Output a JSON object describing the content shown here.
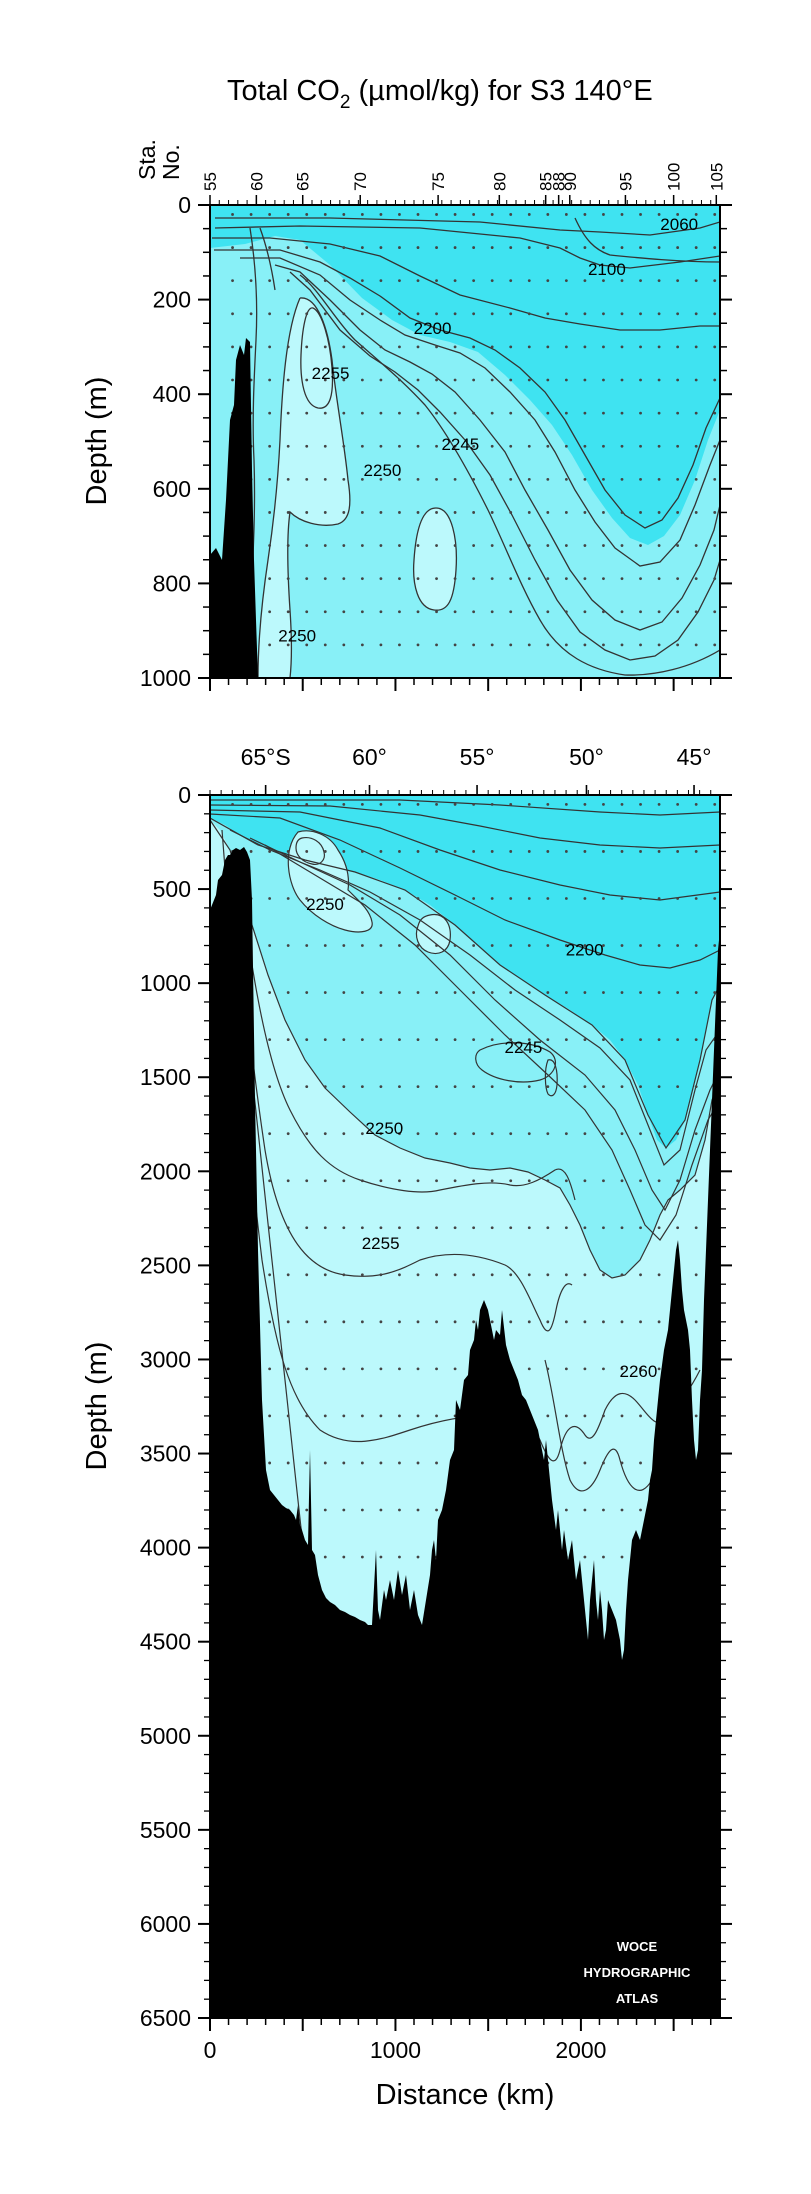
{
  "chart_data": {
    "type": "contour-section",
    "title_main": "Total CO",
    "title_sub": "2",
    "title_rest": " (µmol/kg) for S3 140°E",
    "station_label": [
      "Sta.",
      "No."
    ],
    "xlabel": "Distance (km)",
    "ylabel": "Depth (m)",
    "xlim": [
      0,
      2750
    ],
    "x_ticks": [
      "0",
      "1000",
      "2000"
    ],
    "x_tick_values": [
      0,
      1000,
      2000
    ],
    "stations": [
      {
        "no": "55",
        "km": 0
      },
      {
        "no": "60",
        "km": 250
      },
      {
        "no": "65",
        "km": 500
      },
      {
        "no": "70",
        "km": 810
      },
      {
        "no": "75",
        "km": 1230
      },
      {
        "no": "80",
        "km": 1560
      },
      {
        "no": "85",
        "km": 1810
      },
      {
        "no": "88",
        "km": 1880
      },
      {
        "no": "90",
        "km": 1940
      },
      {
        "no": "95",
        "km": 2240
      },
      {
        "no": "100",
        "km": 2500
      },
      {
        "no": "105",
        "km": 2730
      }
    ],
    "latitude_ticks": [
      {
        "label": "65°S",
        "km": 300
      },
      {
        "label": "60°",
        "km": 860
      },
      {
        "label": "55°",
        "km": 1440
      },
      {
        "label": "50°",
        "km": 2030
      },
      {
        "label": "45°",
        "km": 2610
      }
    ],
    "upper_panel": {
      "ylim": [
        0,
        1000
      ],
      "y_ticks": [
        "0",
        "200",
        "400",
        "600",
        "800",
        "1000"
      ],
      "y_tick_values": [
        0,
        200,
        400,
        600,
        800,
        1000
      ]
    },
    "lower_panel": {
      "ylim": [
        0,
        6500
      ],
      "y_ticks": [
        "0",
        "500",
        "1000",
        "1500",
        "2000",
        "2500",
        "3000",
        "3500",
        "4000",
        "4500",
        "5000",
        "5500",
        "6000",
        "6500"
      ],
      "y_tick_values": [
        0,
        500,
        1000,
        1500,
        2000,
        2500,
        3000,
        3500,
        4000,
        4500,
        5000,
        5500,
        6000,
        6500
      ]
    },
    "contour_labels_upper": [
      {
        "text": "2060",
        "km": 2530,
        "depth": 40
      },
      {
        "text": "2100",
        "km": 2140,
        "depth": 135
      },
      {
        "text": "2200",
        "km": 1200,
        "depth": 260
      },
      {
        "text": "2255",
        "km": 650,
        "depth": 355
      },
      {
        "text": "2245",
        "km": 1350,
        "depth": 505
      },
      {
        "text": "2250",
        "km": 930,
        "depth": 560
      },
      {
        "text": "2250",
        "km": 470,
        "depth": 910
      }
    ],
    "contour_labels_lower": [
      {
        "text": "2250",
        "km": 620,
        "depth": 580
      },
      {
        "text": "2200",
        "km": 2020,
        "depth": 820
      },
      {
        "text": "2245",
        "km": 1690,
        "depth": 1340
      },
      {
        "text": "2250",
        "km": 940,
        "depth": 1770
      },
      {
        "text": "2255",
        "km": 920,
        "depth": 2380
      },
      {
        "text": "2260",
        "km": 2310,
        "depth": 3060
      }
    ],
    "colors": {
      "deep_cyan": "#3fe3f1",
      "mid_cyan": "#88f0f7",
      "pale_cyan": "#bcf9fc",
      "bottom": "#000000",
      "contour": "#333333"
    }
  },
  "watermark": [
    "WOCE",
    "HYDROGRAPHIC",
    "ATLAS"
  ]
}
